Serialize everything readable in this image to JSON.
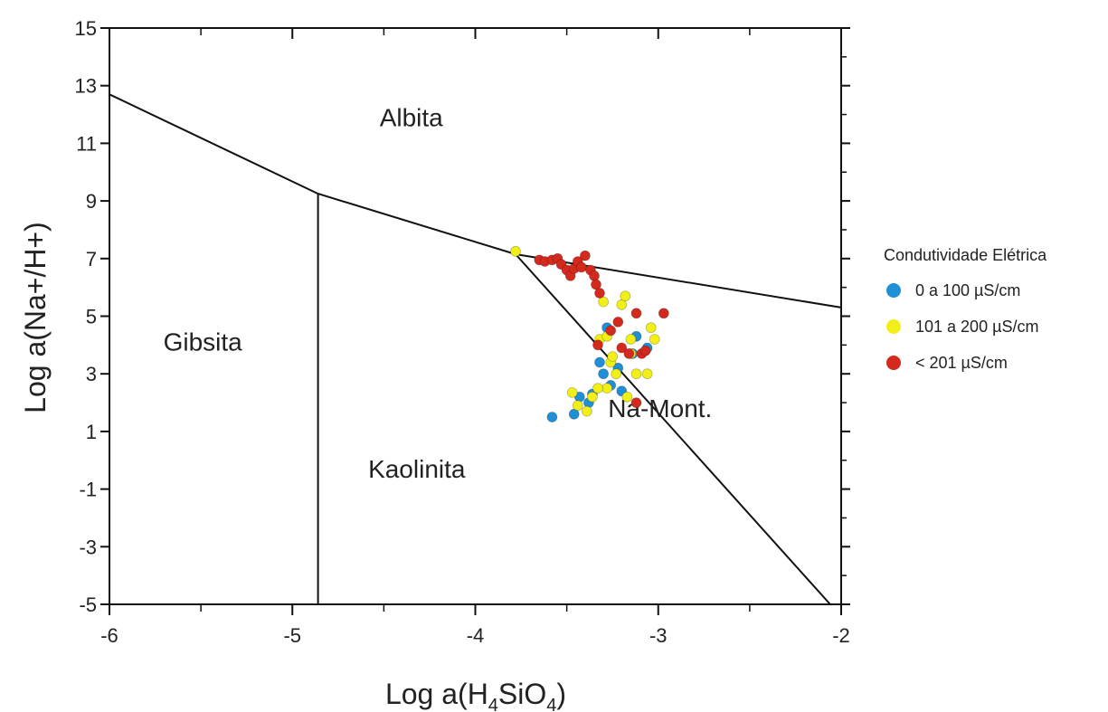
{
  "chart_data": {
    "type": "scatter",
    "xlabel_parts": [
      "Log a(H",
      "4",
      "SiO",
      "4",
      ")"
    ],
    "ylabel": "Log a(Na+/H+)",
    "xlim": [
      -6,
      -2
    ],
    "ylim": [
      -5,
      15
    ],
    "x_ticks": [
      -6,
      -5,
      -4,
      -3,
      -2
    ],
    "y_ticks": [
      15,
      13,
      11,
      9,
      7,
      5,
      3,
      1,
      -1,
      -3,
      -5
    ],
    "x_tick_labels": [
      "-6",
      "-5",
      "-4",
      "-3",
      "-2"
    ],
    "y_tick_labels": [
      "15",
      "13",
      "11",
      "9",
      "7",
      "5",
      "3",
      "1",
      "-1",
      "-3",
      "-5"
    ],
    "field_labels": [
      {
        "text": "Albita",
        "x": -4.35,
        "y": 11.6
      },
      {
        "text": "Gibsita",
        "x": -5.49,
        "y": 3.8
      },
      {
        "text": "Kaolinita",
        "x": -4.32,
        "y": -0.6
      },
      {
        "text": "Na-Mont.",
        "x": -2.99,
        "y": 1.5
      }
    ],
    "boundaries": [
      {
        "name": "albita-gibsita",
        "points": [
          [
            -6,
            12.7
          ],
          [
            -4.86,
            9.25
          ]
        ]
      },
      {
        "name": "albita-kaolinita",
        "points": [
          [
            -4.86,
            9.25
          ],
          [
            -3.78,
            7.15
          ]
        ]
      },
      {
        "name": "albita-na-mont",
        "points": [
          [
            -3.78,
            7.15
          ],
          [
            -2,
            5.3
          ]
        ]
      },
      {
        "name": "gibsita-kaolinita",
        "points": [
          [
            -4.86,
            9.25
          ],
          [
            -4.86,
            -5
          ]
        ]
      },
      {
        "name": "kaolinita-na-mont",
        "points": [
          [
            -3.78,
            7.15
          ],
          [
            -2.06,
            -5
          ]
        ]
      }
    ],
    "legend": {
      "title": "Condutividade Elétrica",
      "position": "right"
    },
    "series": [
      {
        "name": "0 a 100 µS/cm",
        "color": "#1f8fd6",
        "points": [
          [
            -3.58,
            1.5
          ],
          [
            -3.46,
            1.6
          ],
          [
            -3.43,
            2.2
          ],
          [
            -3.38,
            2.0
          ],
          [
            -3.36,
            2.3
          ],
          [
            -3.32,
            3.4
          ],
          [
            -3.3,
            3.0
          ],
          [
            -3.28,
            4.6
          ],
          [
            -3.26,
            2.6
          ],
          [
            -3.22,
            3.2
          ],
          [
            -3.2,
            2.4
          ],
          [
            -3.14,
            3.7
          ],
          [
            -3.12,
            4.3
          ],
          [
            -3.06,
            3.9
          ]
        ]
      },
      {
        "name": "101 a 200 µS/cm",
        "color": "#f2ef18",
        "points": [
          [
            -3.78,
            7.25
          ],
          [
            -3.47,
            2.35
          ],
          [
            -3.44,
            1.9
          ],
          [
            -3.39,
            1.7
          ],
          [
            -3.36,
            2.2
          ],
          [
            -3.32,
            4.2
          ],
          [
            -3.3,
            5.5
          ],
          [
            -3.28,
            2.5
          ],
          [
            -3.26,
            3.4
          ],
          [
            -3.25,
            3.6
          ],
          [
            -3.23,
            3.0
          ],
          [
            -3.2,
            5.4
          ],
          [
            -3.18,
            5.7
          ],
          [
            -3.17,
            2.2
          ],
          [
            -3.15,
            4.2
          ],
          [
            -3.12,
            3.0
          ],
          [
            -3.06,
            3.0
          ],
          [
            -3.04,
            4.6
          ],
          [
            -3.02,
            4.2
          ],
          [
            -3.33,
            2.5
          ],
          [
            -3.15,
            3.7
          ],
          [
            -3.28,
            4.3
          ]
        ]
      },
      {
        "name": "< 201 µS/cm",
        "color": "#d42a1e",
        "points": [
          [
            -3.65,
            6.95
          ],
          [
            -3.62,
            6.9
          ],
          [
            -3.58,
            6.95
          ],
          [
            -3.55,
            7.0
          ],
          [
            -3.53,
            6.8
          ],
          [
            -3.5,
            6.6
          ],
          [
            -3.48,
            6.4
          ],
          [
            -3.46,
            6.65
          ],
          [
            -3.44,
            6.9
          ],
          [
            -3.42,
            6.7
          ],
          [
            -3.4,
            7.1
          ],
          [
            -3.37,
            6.6
          ],
          [
            -3.35,
            6.4
          ],
          [
            -3.34,
            6.1
          ],
          [
            -3.32,
            5.8
          ],
          [
            -3.33,
            4.0
          ],
          [
            -3.26,
            4.5
          ],
          [
            -3.22,
            4.8
          ],
          [
            -3.2,
            3.9
          ],
          [
            -3.16,
            3.7
          ],
          [
            -3.12,
            5.1
          ],
          [
            -3.12,
            2.0
          ],
          [
            -3.09,
            3.7
          ],
          [
            -3.07,
            3.8
          ],
          [
            -2.97,
            5.1
          ]
        ]
      }
    ]
  }
}
